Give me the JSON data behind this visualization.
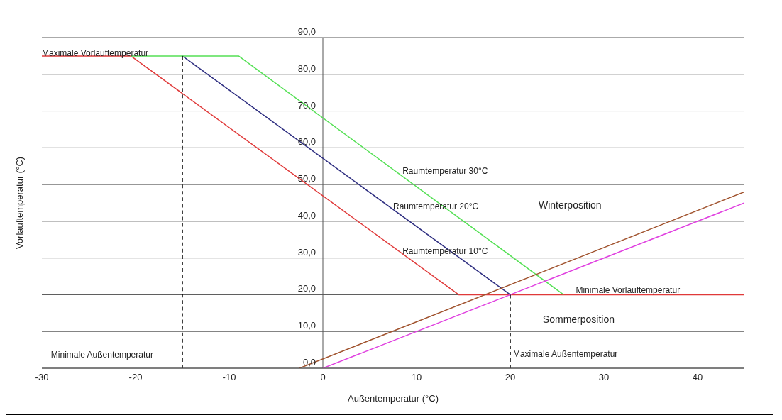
{
  "chart_data": {
    "type": "line",
    "xlabel": "Außentemperatur (°C)",
    "ylabel": "Vorlauftemperatur (°C)",
    "xlim": [
      -30,
      45
    ],
    "xticks": [
      -30,
      -20,
      -10,
      0,
      10,
      20,
      30,
      40
    ],
    "ylim": [
      0,
      90
    ],
    "yticks": [
      {
        "value": 0,
        "label": "0,0"
      },
      {
        "value": 10,
        "label": "10,0"
      },
      {
        "value": 20,
        "label": "20,0"
      },
      {
        "value": 30,
        "label": "30,0"
      },
      {
        "value": 40,
        "label": "40,0"
      },
      {
        "value": 50,
        "label": "50,0"
      },
      {
        "value": 60,
        "label": "60,0"
      },
      {
        "value": 70,
        "label": "70,0"
      },
      {
        "value": 80,
        "label": "80,0"
      },
      {
        "value": 90,
        "label": "90,0"
      }
    ],
    "grid": "y",
    "marker": "none",
    "line_style": "solid",
    "series": [
      {
        "color": "#e03a3a",
        "x": [
          -30,
          -20.5,
          14.5,
          45
        ],
        "values": [
          85,
          85,
          20,
          20
        ]
      },
      {
        "color": "#2e2e80",
        "x": [
          -15,
          20
        ],
        "values": [
          85,
          20
        ]
      },
      {
        "color": "#55e055",
        "x": [
          -20.5,
          -9,
          25.7
        ],
        "values": [
          85,
          85,
          20
        ]
      },
      {
        "color": "#a0522d",
        "x": [
          -2.5,
          45
        ],
        "values": [
          0,
          48
        ]
      },
      {
        "color": "#e040e0",
        "x": [
          0,
          45
        ],
        "values": [
          0,
          45
        ]
      },
      {
        "color": "#000000",
        "line_style": "dashed",
        "x": [
          -15,
          -15
        ],
        "values": [
          0,
          85
        ]
      },
      {
        "color": "#000000",
        "line_style": "dashed",
        "x": [
          20,
          20
        ],
        "values": [
          0,
          20
        ]
      }
    ],
    "annotations": [
      {
        "text": "Maximale Vorlauftemperatur",
        "x": -30,
        "y": 85
      },
      {
        "text": "Raumtemperatur 30°C",
        "x": 8.5,
        "y": 53
      },
      {
        "text": "Raumtemperatur 20°C",
        "x": 7.5,
        "y": 43.2
      },
      {
        "text": "Raumtemperatur 10°C",
        "x": 8.5,
        "y": 31
      },
      "Winterposition",
      {
        "text": "Minimale Vorlauftemperatur",
        "x": 27,
        "y": 20.5
      },
      "Sommerposition",
      {
        "text": "Maximale Außentemperatur",
        "x": 20.3,
        "y": 3
      },
      "Minimale Außentemperatur"
    ]
  }
}
